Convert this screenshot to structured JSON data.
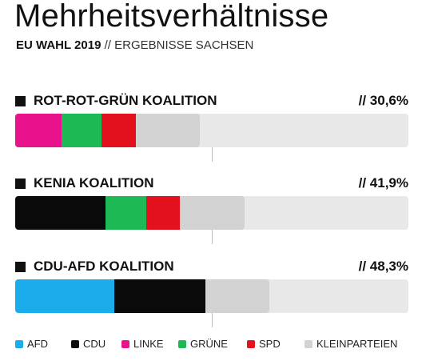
{
  "header": {
    "title": "Mehrheitsverhältnisse",
    "subtitle_bold": "EU WAHL 2019",
    "subtitle_rest": " // ERGEBNISSE SACHSEN"
  },
  "parties": {
    "AFD": "#1aaceb",
    "CDU": "#0a0a0a",
    "LINKE": "#e8138c",
    "GRÜNE": "#1db954",
    "SPD": "#e3101d",
    "KLEINPARTEIEN": "#d2d2d2"
  },
  "legend": [
    "AFD",
    "CDU",
    "LINKE",
    "GRÜNE",
    "SPD",
    "KLEINPARTEIEN"
  ],
  "chart_data": {
    "type": "bar",
    "orientation": "horizontal-stacked",
    "xlim": [
      0,
      100
    ],
    "majority_line": 50,
    "series": [
      {
        "name": "AFD"
      },
      {
        "name": "CDU"
      },
      {
        "name": "LINKE"
      },
      {
        "name": "GRÜNE"
      },
      {
        "name": "SPD"
      },
      {
        "name": "KLEINPARTEIEN"
      }
    ],
    "coalitions": [
      {
        "name": "ROT-ROT-GRÜN KOALITION",
        "total_label": "// 30,6%",
        "total": 30.6,
        "segments": [
          {
            "party": "LINKE",
            "value": 11.7
          },
          {
            "party": "GRÜNE",
            "value": 10.3
          },
          {
            "party": "SPD",
            "value": 8.6
          },
          {
            "party": "KLEINPARTEIEN",
            "value": 16.4
          }
        ]
      },
      {
        "name": "KENIA KOALITION",
        "total_label": "// 41,9%",
        "total": 41.9,
        "segments": [
          {
            "party": "CDU",
            "value": 23.0
          },
          {
            "party": "GRÜNE",
            "value": 10.3
          },
          {
            "party": "SPD",
            "value": 8.6
          },
          {
            "party": "KLEINPARTEIEN",
            "value": 16.4
          }
        ]
      },
      {
        "name": "CDU-AFD KOALITION",
        "total_label": "// 48,3%",
        "total": 48.3,
        "segments": [
          {
            "party": "AFD",
            "value": 25.3
          },
          {
            "party": "CDU",
            "value": 23.0
          },
          {
            "party": "KLEINPARTEIEN",
            "value": 16.4
          }
        ]
      }
    ]
  }
}
